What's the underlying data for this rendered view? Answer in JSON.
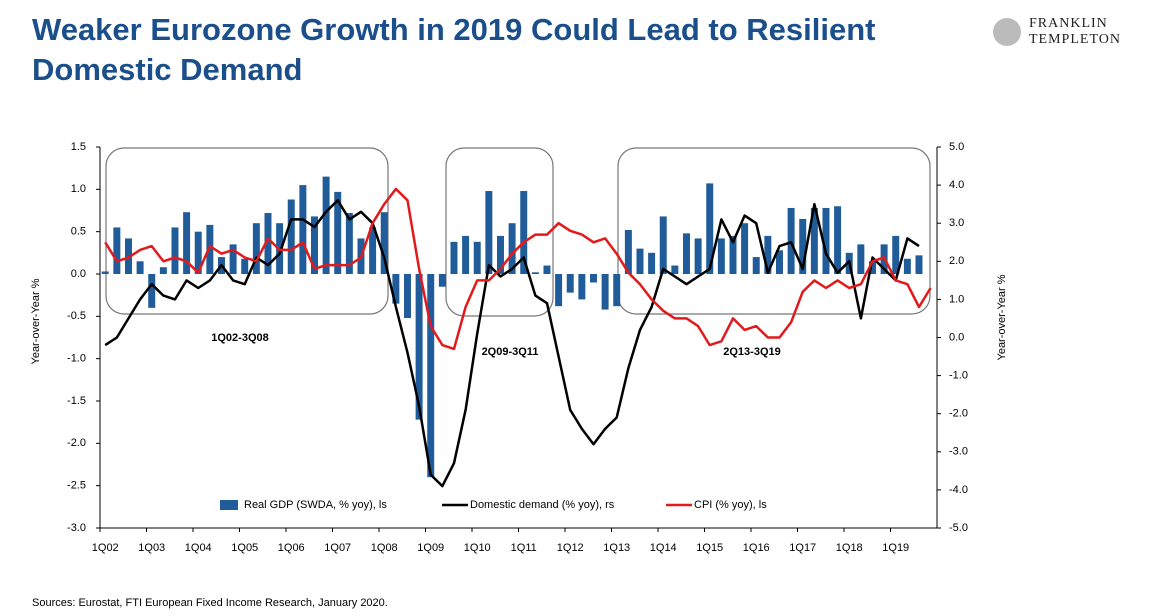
{
  "title": "Weaker Eurozone Growth in 2019 Could Lead to Resilient Domestic Demand",
  "logo": [
    "FRANKLIN",
    "TEMPLETON"
  ],
  "source": "Sources: Eurostat, FTI European Fixed Income Research, January 2020.",
  "chart_data": {
    "type": "bar",
    "y_label": "Year-over-Year %",
    "y2_label": "Year-over-Year %",
    "annotations": [
      "1Q02-3Q08",
      "2Q09-3Q11",
      "2Q13-3Q19"
    ],
    "categories": [
      "1Q02",
      null,
      null,
      null,
      "1Q03",
      null,
      null,
      null,
      "1Q04",
      null,
      null,
      null,
      "1Q05",
      null,
      null,
      null,
      "1Q06",
      null,
      null,
      null,
      "1Q07",
      null,
      null,
      null,
      "1Q08",
      null,
      null,
      null,
      "1Q09",
      null,
      null,
      null,
      "1Q10",
      null,
      null,
      null,
      "1Q11",
      null,
      null,
      null,
      "1Q12",
      null,
      null,
      null,
      "1Q13",
      null,
      null,
      null,
      "1Q14",
      null,
      null,
      null,
      "1Q15",
      null,
      null,
      null,
      "1Q16",
      null,
      null,
      null,
      "1Q17",
      null,
      null,
      null,
      "1Q18",
      null,
      null,
      null,
      "1Q19",
      null,
      null,
      null
    ],
    "series": [
      {
        "name": "Real GDP (SWDA, % yoy), ls",
        "type": "bar",
        "color": "#1f5c99",
        "values": [
          0.03,
          0.55,
          0.42,
          0.15,
          -0.4,
          0.08,
          0.55,
          0.73,
          0.5,
          0.58,
          0.2,
          0.35,
          0.18,
          0.6,
          0.72,
          0.6,
          0.88,
          1.05,
          0.68,
          1.15,
          0.97,
          0.72,
          0.42,
          0.55,
          0.73,
          -0.35,
          -0.52,
          -1.72,
          -2.4,
          -0.15,
          0.38,
          0.45,
          0.38,
          0.98,
          0.45,
          0.6,
          0.98,
          0.02,
          0.1,
          -0.38,
          -0.22,
          -0.3,
          -0.1,
          -0.42,
          -0.38,
          0.52,
          0.3,
          0.25,
          0.68,
          0.1,
          0.48,
          0.42,
          1.07,
          0.42,
          0.45,
          0.6,
          0.2,
          0.45,
          0.28,
          0.78,
          0.65,
          0.78,
          0.78,
          0.8,
          0.25,
          0.35,
          0.15,
          0.35,
          0.45,
          0.18,
          0.22,
          null
        ]
      },
      {
        "name": "Domestic demand (% yoy), rs",
        "type": "line",
        "axis": "y2",
        "color": "#000000",
        "values": [
          -0.2,
          0,
          0.5,
          1.0,
          1.4,
          1.1,
          1.0,
          1.5,
          1.3,
          1.5,
          1.9,
          1.5,
          1.4,
          2.1,
          1.9,
          2.2,
          3.1,
          3.1,
          2.9,
          3.3,
          3.6,
          3.1,
          3.3,
          3.0,
          2.1,
          0.8,
          -0.4,
          -1.8,
          -3.6,
          -3.9,
          -3.3,
          -1.9,
          0.1,
          1.9,
          1.6,
          1.8,
          2.1,
          1.1,
          0.9,
          -0.5,
          -1.9,
          -2.4,
          -2.8,
          -2.4,
          -2.1,
          -0.8,
          0.2,
          0.8,
          1.8,
          1.6,
          1.4,
          1.6,
          1.8,
          3.1,
          2.5,
          3.2,
          3.0,
          1.7,
          2.4,
          2.5,
          1.8,
          3.5,
          2.2,
          1.7,
          2.0,
          0.5,
          2.1,
          1.8,
          1.5,
          2.6,
          2.4,
          null
        ]
      },
      {
        "name": "CPI (% yoy), ls",
        "type": "line",
        "axis": "y2",
        "color": "#e31a1c",
        "values": [
          2.5,
          2.0,
          2.1,
          2.3,
          2.4,
          2.0,
          2.1,
          2.0,
          1.7,
          2.4,
          2.2,
          2.3,
          2.1,
          2.0,
          2.6,
          2.3,
          2.3,
          2.5,
          1.8,
          1.9,
          1.9,
          1.9,
          2.1,
          3.0,
          3.5,
          3.9,
          3.6,
          1.8,
          0.3,
          -0.2,
          -0.3,
          0.8,
          1.5,
          1.5,
          1.8,
          2.2,
          2.5,
          2.7,
          2.7,
          3.0,
          2.8,
          2.7,
          2.5,
          2.6,
          2.2,
          1.7,
          1.4,
          1.0,
          0.7,
          0.5,
          0.5,
          0.3,
          -0.2,
          -0.1,
          0.5,
          0.2,
          0.3,
          0.0,
          0.0,
          0.4,
          1.2,
          1.5,
          1.3,
          1.5,
          1.3,
          1.4,
          2.0,
          2.1,
          1.5,
          1.4,
          0.8,
          1.3
        ]
      }
    ],
    "ylim": [
      -3,
      1.5
    ],
    "yticks": [
      1.5,
      {
        "value": 1,
        "label": "1.0"
      },
      0.5,
      {
        "value": 0,
        "label": "0.0"
      },
      -0.5,
      {
        "value": -1,
        "label": "-1.0"
      },
      -1.5,
      {
        "value": -2,
        "label": "-2.0"
      },
      -2.5,
      {
        "value": -3,
        "label": "-3.0"
      }
    ],
    "y2lim": [
      -5,
      5
    ],
    "y2ticks": [
      {
        "value": 5,
        "label": "5.0"
      },
      {
        "value": 4,
        "label": "4.0"
      },
      {
        "value": 3,
        "label": "3.0"
      },
      {
        "value": 2,
        "label": "2.0"
      },
      {
        "value": 1,
        "label": "1.0"
      },
      {
        "value": 0,
        "label": "0.0"
      },
      {
        "value": -1,
        "label": "-1.0"
      },
      {
        "value": -2,
        "label": "-2.0"
      },
      {
        "value": -3,
        "label": "-3.0"
      },
      {
        "value": -4,
        "label": "-4.0"
      },
      {
        "value": -5,
        "label": "-5.0"
      }
    ],
    "legend": "bottom"
  }
}
